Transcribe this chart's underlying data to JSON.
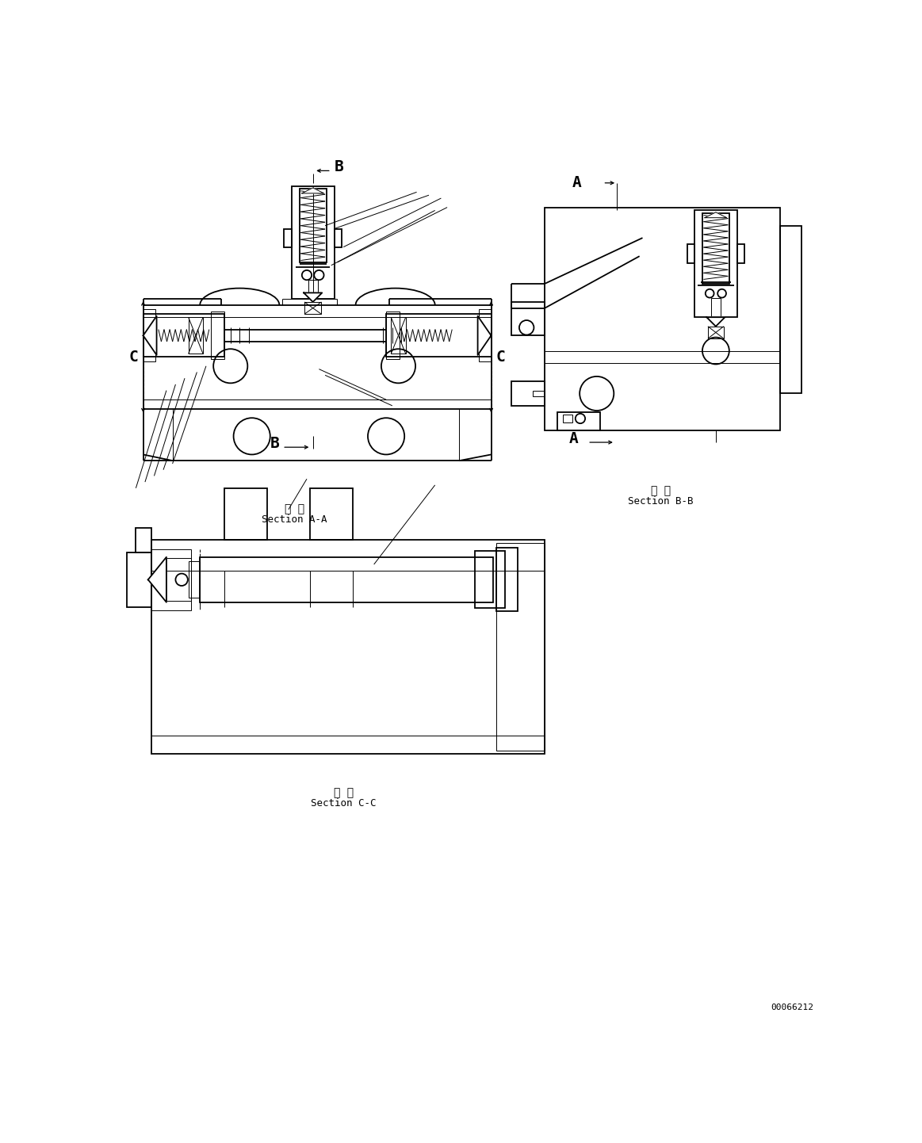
{
  "bg": "#ffffff",
  "lc": "#000000",
  "lw": 1.3,
  "tlw": 0.7,
  "section_aa_line1": "断 面",
  "section_aa_line2": "Section A-A",
  "section_bb_line1": "断 面",
  "section_bb_line2": "Section B-B",
  "section_cc_line1": "断 面",
  "section_cc_line2": "Section C-C",
  "wm": "00066212",
  "A": "A",
  "B": "B",
  "C": "C",
  "fs": 13,
  "fss": 9,
  "fswm": 8
}
